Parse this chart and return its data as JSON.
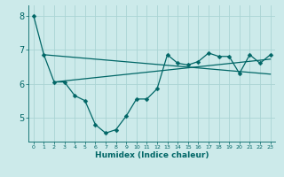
{
  "xlabel": "Humidex (Indice chaleur)",
  "bg_color": "#cceaea",
  "grid_color": "#aad4d4",
  "line_color": "#006666",
  "xlim": [
    -0.5,
    23.5
  ],
  "ylim": [
    4.3,
    8.3
  ],
  "yticks": [
    5,
    6,
    7,
    8
  ],
  "xticks": [
    0,
    1,
    2,
    3,
    4,
    5,
    6,
    7,
    8,
    9,
    10,
    11,
    12,
    13,
    14,
    15,
    16,
    17,
    18,
    19,
    20,
    21,
    22,
    23
  ],
  "main_x": [
    0,
    1,
    2,
    3,
    4,
    5,
    6,
    7,
    8,
    9,
    10,
    11,
    12,
    13,
    14,
    15,
    16,
    17,
    18,
    19,
    20,
    21,
    22,
    23
  ],
  "main_y": [
    8.0,
    6.85,
    6.05,
    6.05,
    5.65,
    5.5,
    4.8,
    4.55,
    4.65,
    5.05,
    5.55,
    5.55,
    5.85,
    6.85,
    6.6,
    6.55,
    6.65,
    6.9,
    6.8,
    6.8,
    6.3,
    6.85,
    6.6,
    6.85
  ],
  "trend1_x": [
    1,
    23
  ],
  "trend1_y": [
    6.85,
    6.28
  ],
  "trend2_x": [
    2,
    23
  ],
  "trend2_y": [
    6.05,
    6.72
  ],
  "marker_size": 2.5,
  "line_width": 0.9
}
